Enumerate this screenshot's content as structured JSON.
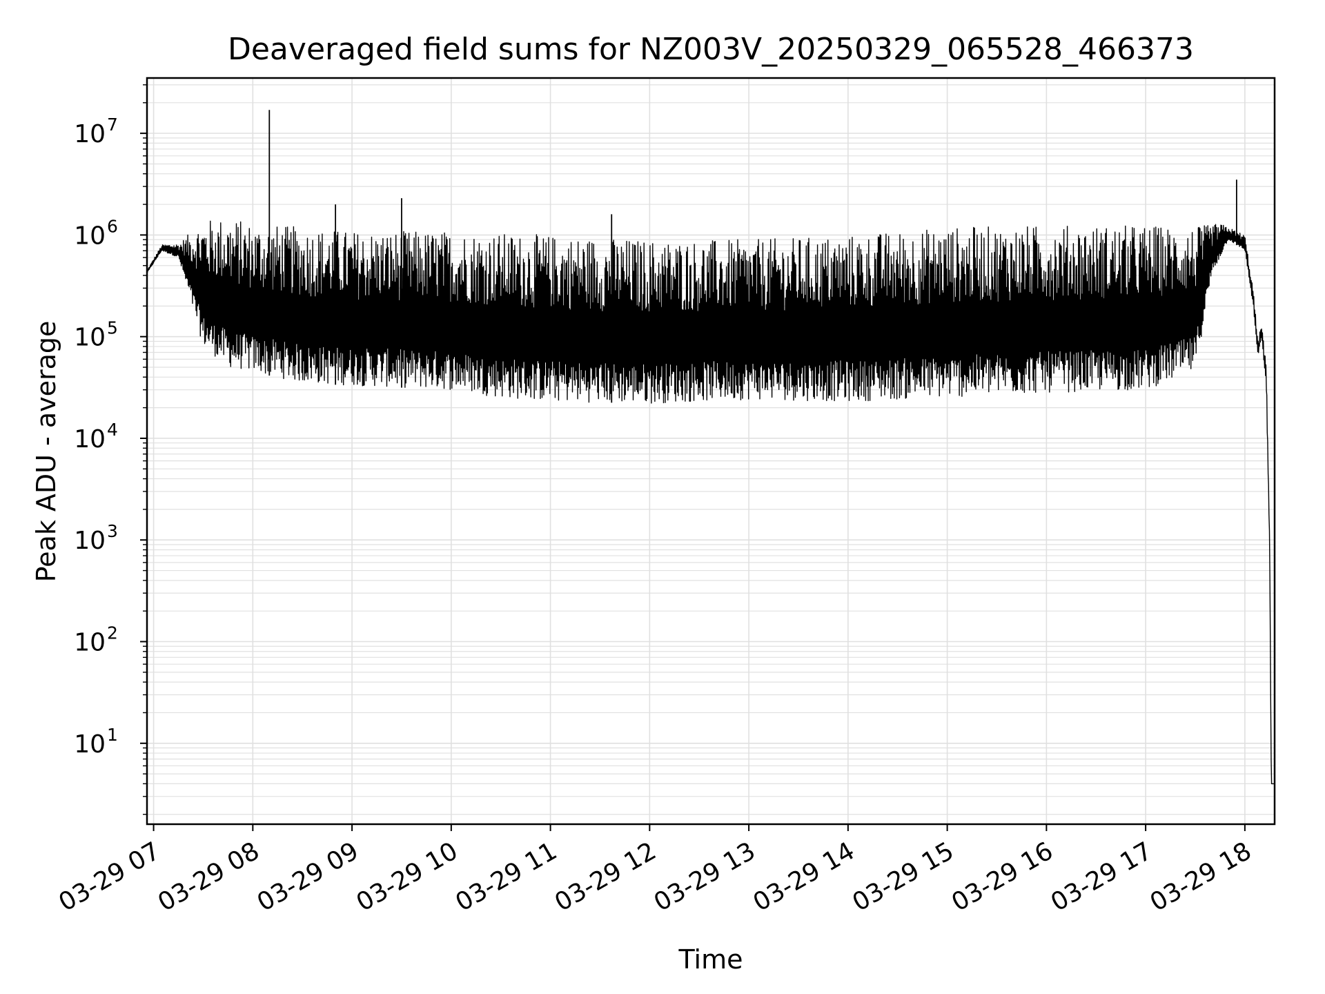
{
  "chart_data": {
    "type": "line",
    "title": "Deaveraged field sums for NZ003V_20250329_065528_466373",
    "xlabel": "Time",
    "ylabel": "Peak ADU - average",
    "yscale": "log",
    "ylim": [
      1.6,
      35000000
    ],
    "xlim": [
      "2025-03-29 06:56",
      "2025-03-29 18:18"
    ],
    "grid": true,
    "line_color": "#000000",
    "grid_color": "#e0e0e0",
    "x_ticks": [
      "2025-03-29 07:00",
      "2025-03-29 08:00",
      "2025-03-29 09:00",
      "2025-03-29 10:00",
      "2025-03-29 11:00",
      "2025-03-29 12:00",
      "2025-03-29 13:00",
      "2025-03-29 14:00",
      "2025-03-29 15:00",
      "2025-03-29 16:00",
      "2025-03-29 17:00",
      "2025-03-29 18:00"
    ],
    "x_tick_labels": [
      "03-29 07",
      "03-29 08",
      "03-29 09",
      "03-29 10",
      "03-29 11",
      "03-29 12",
      "03-29 13",
      "03-29 14",
      "03-29 15",
      "03-29 16",
      "03-29 17",
      "03-29 18"
    ],
    "y_ticks": [
      10,
      100,
      1000,
      10000,
      100000,
      1000000,
      10000000
    ],
    "y_tick_labels": [
      {
        "base": "10",
        "exp": "1"
      },
      {
        "base": "10",
        "exp": "2"
      },
      {
        "base": "10",
        "exp": "3"
      },
      {
        "base": "10",
        "exp": "4"
      },
      {
        "base": "10",
        "exp": "5"
      },
      {
        "base": "10",
        "exp": "6"
      },
      {
        "base": "10",
        "exp": "7"
      }
    ],
    "series": [
      {
        "envelope_upper": [
          [
            "2025-03-29 06:56",
            450000
          ],
          [
            "2025-03-29 07:05",
            800000
          ],
          [
            "2025-03-29 07:15",
            820000
          ],
          [
            "2025-03-29 07:30",
            1400000
          ],
          [
            "2025-03-29 07:45",
            1500000
          ],
          [
            "2025-03-29 08:00",
            1300000
          ],
          [
            "2025-03-29 08:30",
            1200000
          ],
          [
            "2025-03-29 09:00",
            1100000
          ],
          [
            "2025-03-29 10:00",
            1100000
          ],
          [
            "2025-03-29 11:00",
            1000000
          ],
          [
            "2025-03-29 12:00",
            900000
          ],
          [
            "2025-03-29 13:00",
            900000
          ],
          [
            "2025-03-29 14:00",
            1000000
          ],
          [
            "2025-03-29 15:00",
            1200000
          ],
          [
            "2025-03-29 16:00",
            1250000
          ],
          [
            "2025-03-29 17:00",
            1250000
          ],
          [
            "2025-03-29 17:30",
            1200000
          ],
          [
            "2025-03-29 17:45",
            1300000
          ],
          [
            "2025-03-29 18:00",
            1000000
          ],
          [
            "2025-03-29 18:05",
            300000
          ],
          [
            "2025-03-29 18:08",
            90000
          ],
          [
            "2025-03-29 18:10",
            140000
          ],
          [
            "2025-03-29 18:13",
            50000
          ],
          [
            "2025-03-29 18:15",
            1000
          ],
          [
            "2025-03-29 18:16",
            4
          ],
          [
            "2025-03-29 18:18",
            4
          ]
        ],
        "envelope_lower": [
          [
            "2025-03-29 06:56",
            420000
          ],
          [
            "2025-03-29 07:05",
            700000
          ],
          [
            "2025-03-29 07:15",
            600000
          ],
          [
            "2025-03-29 07:30",
            80000
          ],
          [
            "2025-03-29 07:45",
            50000
          ],
          [
            "2025-03-29 08:00",
            45000
          ],
          [
            "2025-03-29 08:30",
            35000
          ],
          [
            "2025-03-29 09:00",
            33000
          ],
          [
            "2025-03-29 10:00",
            30000
          ],
          [
            "2025-03-29 10:30",
            25000
          ],
          [
            "2025-03-29 11:00",
            23000
          ],
          [
            "2025-03-29 12:00",
            22000
          ],
          [
            "2025-03-29 13:00",
            24000
          ],
          [
            "2025-03-29 14:00",
            23000
          ],
          [
            "2025-03-29 15:00",
            25000
          ],
          [
            "2025-03-29 16:00",
            28000
          ],
          [
            "2025-03-29 17:00",
            30000
          ],
          [
            "2025-03-29 17:30",
            45000
          ],
          [
            "2025-03-29 17:40",
            400000
          ],
          [
            "2025-03-29 17:50",
            900000
          ],
          [
            "2025-03-29 18:00",
            700000
          ],
          [
            "2025-03-29 18:05",
            200000
          ],
          [
            "2025-03-29 18:08",
            60000
          ],
          [
            "2025-03-29 18:10",
            100000
          ],
          [
            "2025-03-29 18:13",
            30000
          ],
          [
            "2025-03-29 18:15",
            800
          ],
          [
            "2025-03-29 18:16",
            4
          ],
          [
            "2025-03-29 18:18",
            4
          ]
        ],
        "spikes": [
          [
            "2025-03-29 08:10",
            17000000
          ],
          [
            "2025-03-29 08:50",
            2000000
          ],
          [
            "2025-03-29 09:30",
            2300000
          ],
          [
            "2025-03-29 11:37",
            1600000
          ],
          [
            "2025-03-29 17:55",
            3500000
          ]
        ]
      }
    ]
  }
}
